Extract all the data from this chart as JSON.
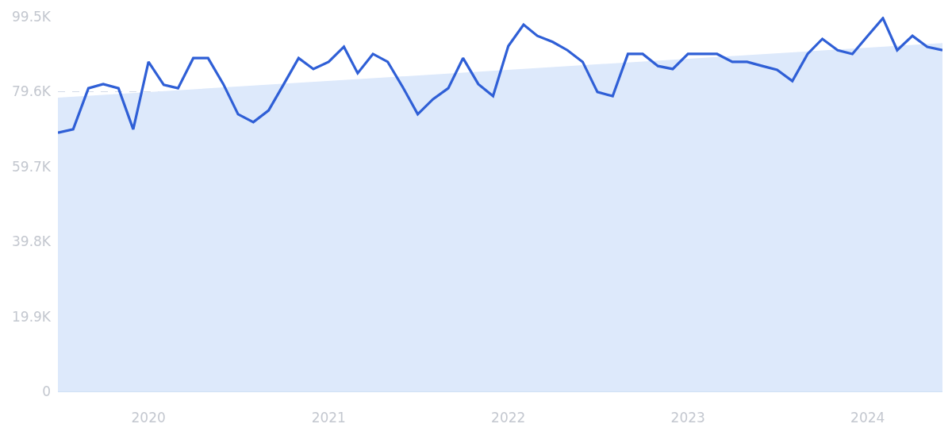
{
  "chart_data": {
    "type": "line",
    "x": [
      "2019-07",
      "2019-08",
      "2019-09",
      "2019-10",
      "2019-11",
      "2019-12",
      "2020-01",
      "2020-02",
      "2020-03",
      "2020-04",
      "2020-05",
      "2020-06",
      "2020-07",
      "2020-08",
      "2020-09",
      "2020-10",
      "2020-11",
      "2020-12",
      "2021-01",
      "2021-02",
      "2021-03",
      "2021-04",
      "2021-05",
      "2021-06",
      "2021-07",
      "2021-08",
      "2021-09",
      "2021-10",
      "2021-11",
      "2021-12",
      "2022-01",
      "2022-02",
      "2022-03",
      "2022-04",
      "2022-05",
      "2022-06",
      "2022-07",
      "2022-08",
      "2022-09",
      "2022-10",
      "2022-11",
      "2022-12",
      "2023-01",
      "2023-02",
      "2023-03",
      "2023-04",
      "2023-05",
      "2023-06",
      "2023-07",
      "2023-08",
      "2023-09",
      "2023-10",
      "2023-11",
      "2023-12",
      "2024-01",
      "2024-02",
      "2024-03",
      "2024-04",
      "2024-05",
      "2024-06"
    ],
    "series": [
      {
        "type": "area",
        "color": "#dde9fb",
        "x": [
          "2019-07",
          "2024-06"
        ],
        "values": [
          78000,
          92500
        ]
      },
      {
        "color": "#2f5fd6",
        "values": [
          68700,
          69600,
          80500,
          81600,
          80500,
          69600,
          87500,
          81400,
          80500,
          88500,
          88500,
          81600,
          73600,
          71500,
          74600,
          81400,
          88500,
          85600,
          87500,
          91500,
          84500,
          89600,
          87500,
          80700,
          73600,
          77600,
          80500,
          88500,
          81600,
          78400,
          91700,
          97400,
          94400,
          92800,
          90600,
          87500,
          79500,
          78400,
          89600,
          89600,
          86400,
          85600,
          89600,
          89600,
          89600,
          87500,
          87500,
          86400,
          85400,
          82400,
          89600,
          93600,
          90600,
          89600,
          94400,
          99100,
          90600,
          94400,
          91500,
          90600
        ]
      }
    ],
    "xlim": [
      "2019-07",
      "2024-06"
    ],
    "xticks": [
      {
        "value": "2020-01-01",
        "label": "2020"
      },
      {
        "value": "2021-01-01",
        "label": "2021"
      },
      {
        "value": "2022-01-01",
        "label": "2022"
      },
      {
        "value": "2023-01-01",
        "label": "2023"
      },
      {
        "value": "2024-01-01",
        "label": "2024"
      }
    ],
    "ylim": [
      0,
      99500
    ],
    "yticks": [
      0,
      {
        "value": 19900,
        "label": "19.9K"
      },
      {
        "value": 39800,
        "label": "39.8K"
      },
      {
        "value": 59700,
        "label": "59.7K"
      },
      {
        "value": 79600,
        "label": "79.6K"
      },
      {
        "value": 99500,
        "label": "99.5K"
      }
    ],
    "grid": "y",
    "line_style": "solid",
    "marker": "none"
  }
}
